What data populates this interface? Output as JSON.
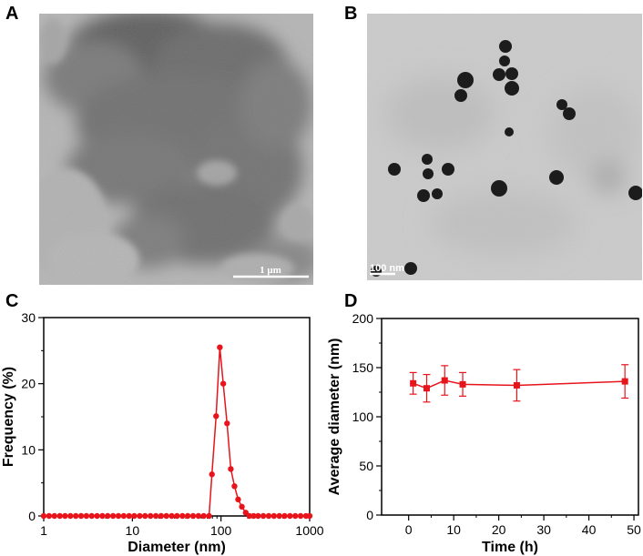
{
  "panels": {
    "a": {
      "letter": "A",
      "scale_bar": "1 μm"
    },
    "b": {
      "letter": "B",
      "scale_bar": "100 nm"
    },
    "c": {
      "letter": "C"
    },
    "d": {
      "letter": "D"
    }
  },
  "chart_data": [
    {
      "type": "line",
      "panel": "C",
      "xlabel": "Diameter (nm)",
      "ylabel": "Frequency (%)",
      "xscale": "log",
      "xlim": [
        1,
        1000
      ],
      "ylim": [
        0,
        30
      ],
      "xticks": [
        "1",
        "10",
        "100",
        "1000"
      ],
      "yticks": [
        "0",
        "10",
        "20",
        "30"
      ],
      "color": "#e8141b",
      "marker": "circle",
      "x": [
        1.0,
        1.15,
        1.32,
        1.52,
        1.74,
        2.0,
        2.3,
        2.64,
        3.03,
        3.48,
        4.0,
        4.59,
        5.27,
        6.06,
        6.96,
        7.99,
        9.18,
        10.5,
        12.1,
        13.9,
        16.0,
        18.4,
        21.1,
        24.2,
        27.8,
        31.9,
        36.7,
        42.1,
        48.4,
        55.6,
        63.8,
        73.3,
        79.0,
        88.0,
        97.0,
        106.0,
        117.0,
        129.0,
        142.0,
        156.0,
        172.0,
        190.0,
        209.0,
        233.0,
        262.0,
        300.0,
        345.0,
        396.0,
        455.0,
        522.0,
        600.0,
        689.0,
        791.0,
        909.0,
        1000.0
      ],
      "y": [
        0,
        0,
        0,
        0,
        0,
        0,
        0,
        0,
        0,
        0,
        0,
        0,
        0,
        0,
        0,
        0,
        0,
        0,
        0,
        0,
        0,
        0,
        0,
        0,
        0,
        0,
        0,
        0,
        0,
        0,
        0,
        0,
        6.3,
        15.1,
        25.5,
        20.0,
        14.0,
        7.1,
        4.5,
        2.5,
        1.4,
        0.5,
        0,
        0,
        0,
        0,
        0,
        0,
        0,
        0,
        0,
        0,
        0,
        0,
        0
      ]
    },
    {
      "type": "line",
      "panel": "D",
      "xlabel": "Time (h)",
      "ylabel": "Average diameter (nm)",
      "xlim": [
        -6,
        51
      ],
      "ylim": [
        0,
        200
      ],
      "xticks": [
        "0",
        "10",
        "20",
        "30",
        "40",
        "50"
      ],
      "yticks": [
        "0",
        "50",
        "100",
        "150",
        "200"
      ],
      "color": "#e8141b",
      "marker": "square",
      "x": [
        1,
        4,
        8,
        12,
        24,
        48
      ],
      "y": [
        134,
        129,
        137,
        133,
        132,
        136
      ],
      "error": [
        11,
        14,
        15,
        12,
        16,
        17
      ]
    }
  ]
}
